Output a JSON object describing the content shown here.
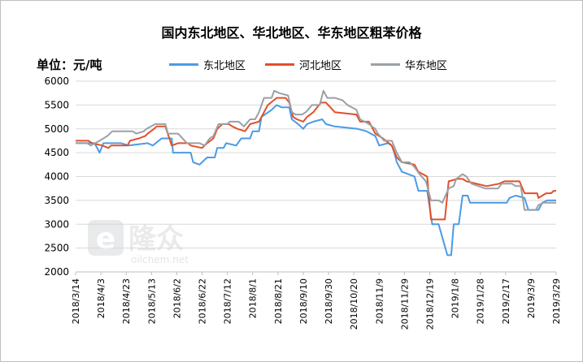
{
  "title": "国内东北地区、华北地区、华东地区粗苯价格",
  "unit_label": "单位：元/吨",
  "watermark": {
    "brand": "隆众",
    "url": "oilchem.net"
  },
  "chart_data": {
    "type": "line",
    "title": "国内东北地区、华北地区、华东地区粗苯价格",
    "ylabel": "单位：元/吨",
    "ylim": [
      2000,
      6000
    ],
    "yticks": [
      2000,
      2500,
      3000,
      3500,
      4000,
      4500,
      5000,
      5500,
      6000
    ],
    "xlim": [
      "2018-03-14",
      "2019-03-29"
    ],
    "xtick_labels": [
      "2018/3/14",
      "2018/4/3",
      "2018/4/23",
      "2018/5/13",
      "2018/6/2",
      "2018/6/22",
      "2018/7/12",
      "2018/8/1",
      "2018/8/21",
      "2018/9/10",
      "2018/9/30",
      "2018/10/20",
      "2018/11/9",
      "2018/11/29",
      "2018/12/19",
      "2019/1/8",
      "2019/1/28",
      "2019/2/17",
      "2019/3/9",
      "2019/3/29"
    ],
    "grid": true,
    "legend_position": "top",
    "series": [
      {
        "name": "东北地区",
        "color": "#4a9be6",
        "points": [
          [
            "2018-03-14",
            4700
          ],
          [
            "2018-03-29",
            4700
          ],
          [
            "2018-04-02",
            4500
          ],
          [
            "2018-04-05",
            4700
          ],
          [
            "2018-04-19",
            4700
          ],
          [
            "2018-04-25",
            4650
          ],
          [
            "2018-05-10",
            4700
          ],
          [
            "2018-05-14",
            4650
          ],
          [
            "2018-05-21",
            4800
          ],
          [
            "2018-05-29",
            4800
          ],
          [
            "2018-05-30",
            4500
          ],
          [
            "2018-06-13",
            4500
          ],
          [
            "2018-06-15",
            4300
          ],
          [
            "2018-06-20",
            4250
          ],
          [
            "2018-06-26",
            4400
          ],
          [
            "2018-07-02",
            4400
          ],
          [
            "2018-07-04",
            4600
          ],
          [
            "2018-07-09",
            4600
          ],
          [
            "2018-07-11",
            4700
          ],
          [
            "2018-07-19",
            4650
          ],
          [
            "2018-07-23",
            4800
          ],
          [
            "2018-07-30",
            4800
          ],
          [
            "2018-08-01",
            4950
          ],
          [
            "2018-08-06",
            4950
          ],
          [
            "2018-08-08",
            5250
          ],
          [
            "2018-08-16",
            5400
          ],
          [
            "2018-08-20",
            5500
          ],
          [
            "2018-08-24",
            5450
          ],
          [
            "2018-08-30",
            5450
          ],
          [
            "2018-09-01",
            5200
          ],
          [
            "2018-09-06",
            5100
          ],
          [
            "2018-09-10",
            5000
          ],
          [
            "2018-09-13",
            5100
          ],
          [
            "2018-09-18",
            5150
          ],
          [
            "2018-09-25",
            5200
          ],
          [
            "2018-09-28",
            5100
          ],
          [
            "2018-10-05",
            5050
          ],
          [
            "2018-10-23",
            5000
          ],
          [
            "2018-10-30",
            4950
          ],
          [
            "2018-11-06",
            4850
          ],
          [
            "2018-11-09",
            4650
          ],
          [
            "2018-11-16",
            4700
          ],
          [
            "2018-11-19",
            4650
          ],
          [
            "2018-11-21",
            4500
          ],
          [
            "2018-11-23",
            4300
          ],
          [
            "2018-11-27",
            4100
          ],
          [
            "2018-12-07",
            4000
          ],
          [
            "2018-12-10",
            3700
          ],
          [
            "2018-12-17",
            3700
          ],
          [
            "2018-12-21",
            3000
          ],
          [
            "2018-12-26",
            3000
          ],
          [
            "2019-01-02",
            2350
          ],
          [
            "2019-01-05",
            2350
          ],
          [
            "2019-01-07",
            3000
          ],
          [
            "2019-01-11",
            3000
          ],
          [
            "2019-01-14",
            3600
          ],
          [
            "2019-01-18",
            3600
          ],
          [
            "2019-01-20",
            3450
          ],
          [
            "2019-02-18",
            3450
          ],
          [
            "2019-02-20",
            3550
          ],
          [
            "2019-02-25",
            3600
          ],
          [
            "2019-03-04",
            3550
          ],
          [
            "2019-03-07",
            3300
          ],
          [
            "2019-03-15",
            3300
          ],
          [
            "2019-03-18",
            3450
          ],
          [
            "2019-03-22",
            3500
          ],
          [
            "2019-03-29",
            3500
          ]
        ]
      },
      {
        "name": "河北地区",
        "color": "#e2502a",
        "points": [
          [
            "2018-03-14",
            4750
          ],
          [
            "2018-03-24",
            4750
          ],
          [
            "2018-03-27",
            4700
          ],
          [
            "2018-04-04",
            4650
          ],
          [
            "2018-04-09",
            4600
          ],
          [
            "2018-04-11",
            4650
          ],
          [
            "2018-04-24",
            4650
          ],
          [
            "2018-04-26",
            4750
          ],
          [
            "2018-05-03",
            4800
          ],
          [
            "2018-05-08",
            4850
          ],
          [
            "2018-05-10",
            4900
          ],
          [
            "2018-05-15",
            5000
          ],
          [
            "2018-05-17",
            5050
          ],
          [
            "2018-05-24",
            5050
          ],
          [
            "2018-05-29",
            4650
          ],
          [
            "2018-06-03",
            4700
          ],
          [
            "2018-06-11",
            4700
          ],
          [
            "2018-06-13",
            4650
          ],
          [
            "2018-06-22",
            4600
          ],
          [
            "2018-06-26",
            4700
          ],
          [
            "2018-07-01",
            4800
          ],
          [
            "2018-07-04",
            5000
          ],
          [
            "2018-07-08",
            5100
          ],
          [
            "2018-07-13",
            5100
          ],
          [
            "2018-07-16",
            5050
          ],
          [
            "2018-07-20",
            5000
          ],
          [
            "2018-07-26",
            4950
          ],
          [
            "2018-07-30",
            5100
          ],
          [
            "2018-08-06",
            5150
          ],
          [
            "2018-08-09",
            5300
          ],
          [
            "2018-08-13",
            5500
          ],
          [
            "2018-08-20",
            5650
          ],
          [
            "2018-08-27",
            5650
          ],
          [
            "2018-08-30",
            5550
          ],
          [
            "2018-09-02",
            5250
          ],
          [
            "2018-09-05",
            5200
          ],
          [
            "2018-09-10",
            5150
          ],
          [
            "2018-09-13",
            5250
          ],
          [
            "2018-09-18",
            5350
          ],
          [
            "2018-09-24",
            5550
          ],
          [
            "2018-09-28",
            5550
          ],
          [
            "2018-10-05",
            5350
          ],
          [
            "2018-10-22",
            5300
          ],
          [
            "2018-10-25",
            5150
          ],
          [
            "2018-11-01",
            5150
          ],
          [
            "2018-11-06",
            4900
          ],
          [
            "2018-11-12",
            4800
          ],
          [
            "2018-11-19",
            4650
          ],
          [
            "2018-11-23",
            4400
          ],
          [
            "2018-11-27",
            4300
          ],
          [
            "2018-12-07",
            4250
          ],
          [
            "2018-12-10",
            4100
          ],
          [
            "2018-12-17",
            4000
          ],
          [
            "2018-12-20",
            3100
          ],
          [
            "2018-12-31",
            3100
          ],
          [
            "2019-01-03",
            3900
          ],
          [
            "2019-01-10",
            3950
          ],
          [
            "2019-01-14",
            3950
          ],
          [
            "2019-01-17",
            3900
          ],
          [
            "2019-02-02",
            3800
          ],
          [
            "2019-02-12",
            3850
          ],
          [
            "2019-02-16",
            3900
          ],
          [
            "2019-02-28",
            3900
          ],
          [
            "2019-03-04",
            3650
          ],
          [
            "2019-03-14",
            3650
          ],
          [
            "2019-03-15",
            3550
          ],
          [
            "2019-03-21",
            3650
          ],
          [
            "2019-03-25",
            3650
          ],
          [
            "2019-03-27",
            3700
          ],
          [
            "2019-03-29",
            3700
          ]
        ]
      },
      {
        "name": "华东地区",
        "color": "#9aa1a6",
        "points": [
          [
            "2018-03-14",
            4700
          ],
          [
            "2018-03-23",
            4700
          ],
          [
            "2018-03-26",
            4650
          ],
          [
            "2018-04-02",
            4750
          ],
          [
            "2018-04-08",
            4850
          ],
          [
            "2018-04-12",
            4950
          ],
          [
            "2018-04-25",
            4950
          ],
          [
            "2018-04-28",
            4950
          ],
          [
            "2018-05-01",
            4900
          ],
          [
            "2018-05-07",
            4950
          ],
          [
            "2018-05-09",
            5000
          ],
          [
            "2018-05-16",
            5100
          ],
          [
            "2018-05-24",
            5100
          ],
          [
            "2018-05-26",
            4900
          ],
          [
            "2018-06-03",
            4900
          ],
          [
            "2018-06-10",
            4700
          ],
          [
            "2018-06-20",
            4700
          ],
          [
            "2018-06-24",
            4650
          ],
          [
            "2018-06-28",
            4800
          ],
          [
            "2018-07-01",
            4850
          ],
          [
            "2018-07-05",
            5100
          ],
          [
            "2018-07-12",
            5100
          ],
          [
            "2018-07-14",
            5150
          ],
          [
            "2018-07-21",
            5150
          ],
          [
            "2018-07-25",
            5050
          ],
          [
            "2018-07-30",
            5200
          ],
          [
            "2018-08-03",
            5200
          ],
          [
            "2018-08-06",
            5350
          ],
          [
            "2018-08-10",
            5650
          ],
          [
            "2018-08-16",
            5650
          ],
          [
            "2018-08-18",
            5800
          ],
          [
            "2018-08-22",
            5750
          ],
          [
            "2018-08-29",
            5700
          ],
          [
            "2018-09-01",
            5350
          ],
          [
            "2018-09-04",
            5300
          ],
          [
            "2018-09-09",
            5300
          ],
          [
            "2018-09-12",
            5350
          ],
          [
            "2018-09-17",
            5500
          ],
          [
            "2018-09-23",
            5500
          ],
          [
            "2018-09-26",
            5800
          ],
          [
            "2018-09-29",
            5650
          ],
          [
            "2018-10-05",
            5650
          ],
          [
            "2018-10-11",
            5600
          ],
          [
            "2018-10-15",
            5500
          ],
          [
            "2018-10-22",
            5400
          ],
          [
            "2018-10-25",
            5200
          ],
          [
            "2018-11-01",
            5100
          ],
          [
            "2018-11-06",
            5000
          ],
          [
            "2018-11-08",
            4900
          ],
          [
            "2018-11-13",
            4750
          ],
          [
            "2018-11-19",
            4750
          ],
          [
            "2018-11-23",
            4500
          ],
          [
            "2018-11-27",
            4300
          ],
          [
            "2018-12-03",
            4300
          ],
          [
            "2018-12-07",
            4200
          ],
          [
            "2018-12-11",
            4050
          ],
          [
            "2018-12-16",
            3900
          ],
          [
            "2018-12-20",
            3500
          ],
          [
            "2018-12-26",
            3500
          ],
          [
            "2018-12-29",
            3450
          ],
          [
            "2019-01-03",
            3750
          ],
          [
            "2019-01-07",
            3800
          ],
          [
            "2019-01-09",
            3950
          ],
          [
            "2019-01-14",
            4050
          ],
          [
            "2019-01-17",
            4000
          ],
          [
            "2019-01-21",
            3850
          ],
          [
            "2019-02-01",
            3750
          ],
          [
            "2019-02-11",
            3750
          ],
          [
            "2019-02-14",
            3850
          ],
          [
            "2019-02-22",
            3850
          ],
          [
            "2019-02-25",
            3800
          ],
          [
            "2019-03-01",
            3800
          ],
          [
            "2019-03-04",
            3300
          ],
          [
            "2019-03-13",
            3300
          ],
          [
            "2019-03-15",
            3400
          ],
          [
            "2019-03-19",
            3450
          ],
          [
            "2019-03-24",
            3450
          ],
          [
            "2019-03-29",
            3450
          ]
        ]
      }
    ]
  }
}
